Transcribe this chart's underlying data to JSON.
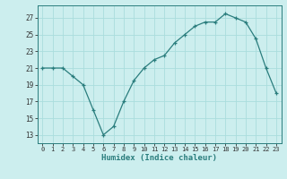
{
  "x": [
    0,
    1,
    2,
    3,
    4,
    5,
    6,
    7,
    8,
    9,
    10,
    11,
    12,
    13,
    14,
    15,
    16,
    17,
    18,
    19,
    20,
    21,
    22,
    23
  ],
  "y": [
    21,
    21,
    21,
    20,
    19,
    16,
    13,
    14,
    17,
    19.5,
    21,
    22,
    22.5,
    24,
    25,
    26,
    26.5,
    26.5,
    27.5,
    27,
    26.5,
    24.5,
    21,
    18
  ],
  "line_color": "#2a7d7d",
  "marker_color": "#2a7d7d",
  "bg_color": "#cceeee",
  "grid_color": "#aadddd",
  "xlabel": "Humidex (Indice chaleur)",
  "xlim": [
    -0.5,
    23.5
  ],
  "ylim": [
    12,
    28.5
  ],
  "yticks": [
    13,
    15,
    17,
    19,
    21,
    23,
    25,
    27
  ],
  "xticks": [
    0,
    1,
    2,
    3,
    4,
    5,
    6,
    7,
    8,
    9,
    10,
    11,
    12,
    13,
    14,
    15,
    16,
    17,
    18,
    19,
    20,
    21,
    22,
    23
  ],
  "xtick_labels": [
    "0",
    "1",
    "2",
    "3",
    "4",
    "5",
    "6",
    "7",
    "8",
    "9",
    "10",
    "11",
    "12",
    "13",
    "14",
    "15",
    "16",
    "17",
    "18",
    "19",
    "20",
    "21",
    "22",
    "23"
  ]
}
